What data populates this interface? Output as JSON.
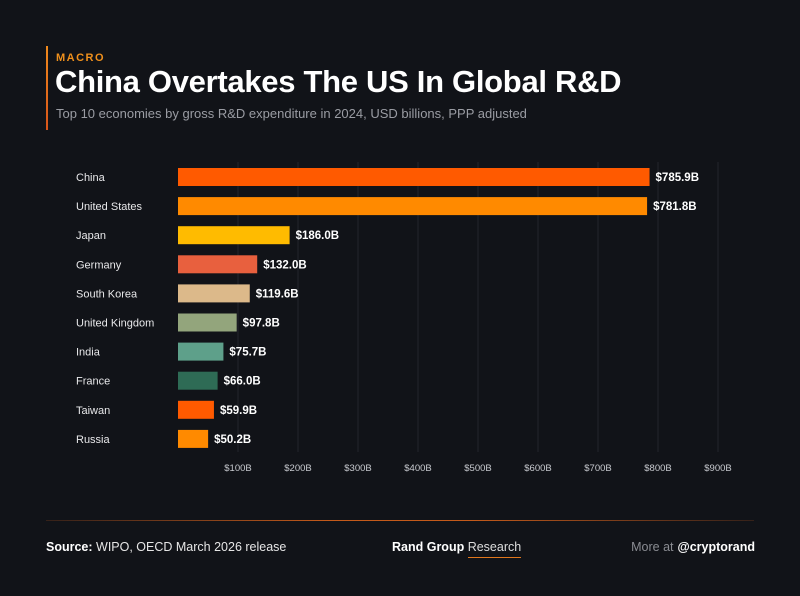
{
  "header": {
    "kicker": "MACRO",
    "title": "China Overtakes The US In Global R&D",
    "subtitle": "Top 10 economies by gross R&D expenditure in 2024, USD billions, PPP adjusted"
  },
  "chart_data": {
    "type": "bar",
    "orientation": "horizontal",
    "categories": [
      "China",
      "United States",
      "Japan",
      "Germany",
      "South Korea",
      "United Kingdom",
      "India",
      "France",
      "Taiwan",
      "Russia"
    ],
    "values": [
      785.9,
      781.8,
      186.0,
      132.0,
      119.6,
      97.8,
      75.7,
      66.0,
      59.9,
      50.2
    ],
    "data_labels": [
      "$785.9B",
      "$781.8B",
      "$186.0B",
      "$132.0B",
      "$119.6B",
      "$97.8B",
      "$75.7B",
      "$66.0B",
      "$59.9B",
      "$50.2B"
    ],
    "colors": [
      "#ff5a00",
      "#ff8a00",
      "#ffbb00",
      "#e8603e",
      "#dcb98a",
      "#93a57c",
      "#5ea08a",
      "#2e6b55",
      "#ff5a00",
      "#ff8a00"
    ],
    "xlim": [
      0,
      900
    ],
    "xticks": [
      100,
      200,
      300,
      400,
      500,
      600,
      700,
      800,
      900
    ],
    "xtick_labels": [
      "$100B",
      "$200B",
      "$300B",
      "$400B",
      "$500B",
      "$600B",
      "$700B",
      "$800B",
      "$900B"
    ],
    "grid": true
  },
  "footer": {
    "source_label": "Source:",
    "source_text": "WIPO, OECD March 2026 release",
    "brand_bold": "Rand Group",
    "brand_light": "Research",
    "more_label": "More at",
    "handle": "@cryptorand"
  }
}
